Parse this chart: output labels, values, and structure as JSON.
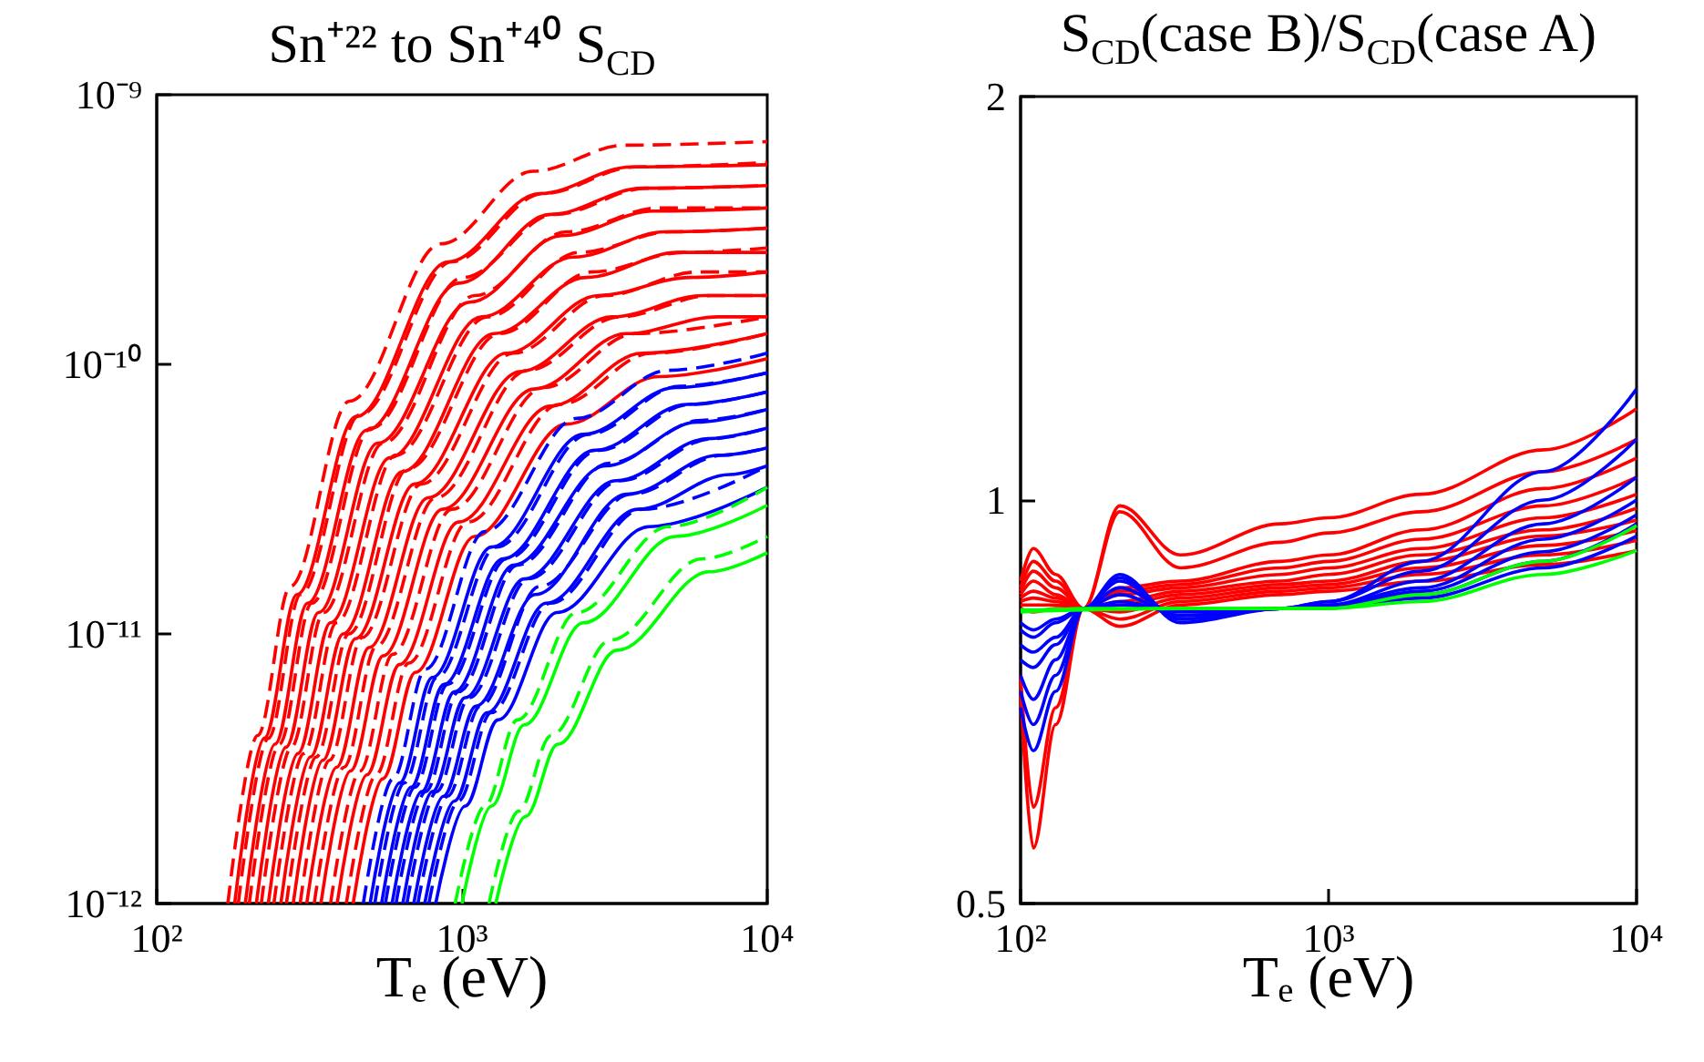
{
  "chart_data": [
    {
      "type": "line",
      "title": "Sn⁺²² to Sn⁺⁴⁰ S$_{CD}$",
      "xlabel": "Tₑ (eV)",
      "log": "xy",
      "marker": "none",
      "xlim": [
        100,
        10000
      ],
      "ylim": [
        1e-12,
        1e-09
      ],
      "xticks": [
        {
          "value": 100,
          "label": "10²"
        },
        {
          "value": 1000,
          "label": "10³"
        },
        {
          "value": 10000,
          "label": "10⁴"
        }
      ],
      "yticks": [
        {
          "value": 1e-12,
          "label": "10⁻¹²"
        },
        {
          "value": 1e-11,
          "label": "10⁻¹¹"
        },
        {
          "value": 1e-10,
          "label": "10⁻¹⁰"
        },
        {
          "value": 1e-09,
          "label": "10⁻⁹"
        }
      ],
      "series": [
        {
          "color": "#ff0000",
          "line_style": "solid",
          "x": [
            180,
            225,
            288,
            450,
            900,
            1800,
            3600,
            10000
          ],
          "values": [
            1e-12,
            4.1e-12,
            1.4e-11,
            6.4e-11,
            2.4e-10,
            4.3e-10,
            5.4e-10,
            5.5e-10
          ]
        },
        {
          "color": "#ff0000",
          "line_style": "dashed",
          "x": [
            171,
            214,
            274,
            428,
            855,
            1710,
            3420,
            10000
          ],
          "values": [
            1e-12,
            4.2e-12,
            1.5e-11,
            7.3e-11,
            2.8e-10,
            5.2e-10,
            6.5e-10,
            6.7e-10
          ]
        },
        {
          "color": "#ff0000",
          "line_style": "solid",
          "x": [
            195,
            244,
            312,
            488,
            975,
            1950,
            3900,
            10000
          ],
          "values": [
            1e-12,
            3.9e-12,
            1.3e-11,
            5.7e-11,
            2e-10,
            3.6e-10,
            4.5e-10,
            4.6e-10
          ]
        },
        {
          "color": "#ff0000",
          "line_style": "dashed",
          "x": [
            185,
            232,
            296,
            463,
            926,
            1850,
            3700,
            10000
          ],
          "values": [
            1e-12,
            4.1e-12,
            1.4e-11,
            6.5e-11,
            2.4e-10,
            4.3e-10,
            5.4e-10,
            5.6e-10
          ]
        },
        {
          "color": "#ff0000",
          "line_style": "solid",
          "x": [
            212,
            265,
            339,
            530,
            1060,
            2120,
            4240,
            10000
          ],
          "values": [
            1e-12,
            3.8e-12,
            1.2e-11,
            5.1e-11,
            1.7e-10,
            3e-10,
            3.7e-10,
            3.8e-10
          ]
        },
        {
          "color": "#ff0000",
          "line_style": "dashed",
          "x": [
            201,
            252,
            322,
            504,
            1007,
            2014,
            4028,
            10000
          ],
          "values": [
            1e-12,
            3.9e-12,
            1.3e-11,
            5.8e-11,
            2.1e-10,
            3.6e-10,
            4.5e-10,
            4.6e-10
          ]
        },
        {
          "color": "#ff0000",
          "line_style": "solid",
          "x": [
            232,
            290,
            371,
            580,
            1160,
            2320,
            4640,
            10000
          ],
          "values": [
            1e-12,
            3.6e-12,
            1.1e-11,
            4.5e-11,
            1.5e-10,
            2.5e-10,
            3.1e-10,
            3.2e-10
          ]
        },
        {
          "color": "#ff0000",
          "line_style": "dashed",
          "x": [
            220,
            276,
            352,
            551,
            1102,
            2204,
            4408,
            10000
          ],
          "values": [
            1e-12,
            3.8e-12,
            1.2e-11,
            5.1e-11,
            1.8e-10,
            3.1e-10,
            3.8e-10,
            3.8e-10
          ]
        },
        {
          "color": "#ff0000",
          "line_style": "solid",
          "x": [
            255,
            319,
            408,
            638,
            1275,
            2550,
            5100,
            10000
          ],
          "values": [
            1e-12,
            3.5e-12,
            1e-11,
            4e-11,
            1.3e-10,
            2.1e-10,
            2.6e-10,
            2.6e-10
          ]
        },
        {
          "color": "#ff0000",
          "line_style": "dashed",
          "x": [
            242,
            303,
            388,
            606,
            1211,
            2422,
            4845,
            10000
          ],
          "values": [
            1e-12,
            3.6e-12,
            1.1e-11,
            4.6e-11,
            1.5e-10,
            2.6e-10,
            3.1e-10,
            3.2e-10
          ]
        },
        {
          "color": "#ff0000",
          "line_style": "solid",
          "x": [
            280,
            350,
            448,
            700,
            1400,
            2800,
            5600,
            10000
          ],
          "values": [
            1e-12,
            3.4e-12,
            9.6e-12,
            3.6e-11,
            1.1e-10,
            1.8e-10,
            2.1e-10,
            2.2e-10
          ]
        },
        {
          "color": "#ff0000",
          "line_style": "dashed",
          "x": [
            266,
            333,
            426,
            665,
            1330,
            2660,
            5320,
            10000
          ],
          "values": [
            1e-12,
            3.5e-12,
            1e-11,
            4.1e-11,
            1.3e-10,
            2.2e-10,
            2.6e-10,
            2.7e-10
          ]
        },
        {
          "color": "#ff0000",
          "line_style": "solid",
          "x": [
            310,
            388,
            496,
            775,
            1550,
            3100,
            6200,
            10000
          ],
          "values": [
            1e-12,
            3.2e-12,
            8.9e-12,
            3.2e-11,
            9.4e-11,
            1.5e-10,
            1.8e-10,
            1.8e-10
          ]
        },
        {
          "color": "#ff0000",
          "line_style": "dashed",
          "x": [
            295,
            368,
            471,
            736,
            1473,
            2945,
            5890,
            10000
          ],
          "values": [
            1e-12,
            3.4e-12,
            9.7e-12,
            3.6e-11,
            1.1e-10,
            1.8e-10,
            2.2e-10,
            2.2e-10
          ]
        },
        {
          "color": "#ff0000",
          "line_style": "solid",
          "x": [
            345,
            431,
            552,
            863,
            1725,
            3450,
            6900,
            10000
          ],
          "values": [
            1e-12,
            3.1e-12,
            8.3e-12,
            2.9e-11,
            8.1e-11,
            1.3e-10,
            1.5e-10,
            1.5e-10
          ]
        },
        {
          "color": "#ff0000",
          "line_style": "dashed",
          "x": [
            328,
            410,
            524,
            820,
            1639,
            3278,
            6555,
            10000
          ],
          "values": [
            1e-12,
            3.2e-12,
            9e-12,
            3.2e-11,
            9.5e-11,
            1.5e-10,
            1.8e-10,
            1.8e-10
          ]
        },
        {
          "color": "#ff0000",
          "line_style": "solid",
          "x": [
            390,
            488,
            624,
            975,
            1950,
            3900,
            10000
          ],
          "values": [
            1e-12,
            3e-12,
            7.7e-12,
            2.6e-11,
            7e-11,
            1.1e-10,
            1.3e-10
          ]
        },
        {
          "color": "#ff0000",
          "line_style": "dashed",
          "x": [
            371,
            463,
            593,
            926,
            1853,
            3705,
            10000
          ],
          "values": [
            1e-12,
            3.1e-12,
            8.4e-12,
            2.9e-11,
            8.2e-11,
            1.3e-10,
            1.5e-10
          ]
        },
        {
          "color": "#ff0000",
          "line_style": "solid",
          "x": [
            440,
            550,
            704,
            1100,
            2200,
            4400,
            10000
          ],
          "values": [
            1e-12,
            2.9e-12,
            7.2e-12,
            2.3e-11,
            6e-11,
            9e-11,
            1.05e-10
          ]
        },
        {
          "color": "#ff0000",
          "line_style": "dashed",
          "x": [
            418,
            523,
            669,
            1045,
            2090,
            4180,
            10000
          ],
          "values": [
            1e-12,
            3e-12,
            7.8e-12,
            2.6e-11,
            7.1e-11,
            1.1e-10,
            1.3e-10
          ]
        },
        {
          "color": "#0000ff",
          "line_style": "solid",
          "x": [
            500,
            625,
            800,
            1250,
            2500,
            5000,
            10000
          ],
          "values": [
            1e-12,
            2.8e-12,
            6.9e-12,
            2.1e-11,
            5.5e-11,
            8.2e-11,
            9.3e-11
          ]
        },
        {
          "color": "#0000ff",
          "line_style": "dashed",
          "x": [
            475,
            594,
            760,
            1188,
            2375,
            4750,
            10000
          ],
          "values": [
            1e-12,
            2.9e-12,
            7.4e-12,
            2.4e-11,
            6.3e-11,
            9.5e-11,
            1.1e-10
          ]
        },
        {
          "color": "#0000ff",
          "line_style": "solid",
          "x": [
            545,
            681,
            872,
            1363,
            2725,
            5450,
            10000
          ],
          "values": [
            1e-12,
            2.7e-12,
            6.5e-12,
            1.9e-11,
            4.8e-11,
            7.1e-11,
            7.9e-11
          ]
        },
        {
          "color": "#0000ff",
          "line_style": "dashed",
          "x": [
            518,
            647,
            828,
            1295,
            2589,
            5178,
            10000
          ],
          "values": [
            1e-12,
            2.8e-12,
            6.9e-12,
            2.1e-11,
            5.5e-11,
            8.3e-11,
            9.3e-11
          ]
        },
        {
          "color": "#0000ff",
          "line_style": "solid",
          "x": [
            590,
            738,
            944,
            1475,
            2950,
            5900,
            10000
          ],
          "values": [
            1e-12,
            2.6e-12,
            6.1e-12,
            1.8e-11,
            4.2e-11,
            6.1e-11,
            6.8e-11
          ]
        },
        {
          "color": "#0000ff",
          "line_style": "dashed",
          "x": [
            561,
            701,
            897,
            1401,
            2803,
            5605,
            10000
          ],
          "values": [
            1e-12,
            2.7e-12,
            6.5e-12,
            1.9e-11,
            4.8e-11,
            7.1e-11,
            7.9e-11
          ]
        },
        {
          "color": "#0000ff",
          "line_style": "solid",
          "x": [
            640,
            800,
            1024,
            1600,
            3200,
            6400,
            10000
          ],
          "values": [
            1e-12,
            2.6e-12,
            5.8e-12,
            1.6e-11,
            3.7e-11,
            5.3e-11,
            5.8e-11
          ]
        },
        {
          "color": "#0000ff",
          "line_style": "dashed",
          "x": [
            608,
            760,
            973,
            1520,
            3040,
            6080,
            10000
          ],
          "values": [
            1e-12,
            2.6e-12,
            6.1e-12,
            1.8e-11,
            4.3e-11,
            6.2e-11,
            6.8e-11
          ]
        },
        {
          "color": "#0000ff",
          "line_style": "solid",
          "x": [
            695,
            869,
            1112,
            1738,
            3475,
            6950,
            10000
          ],
          "values": [
            1e-12,
            2.5e-12,
            5.4e-12,
            1.4e-11,
            3.3e-11,
            4.6e-11,
            4.9e-11
          ]
        },
        {
          "color": "#0000ff",
          "line_style": "dashed",
          "x": [
            660,
            826,
            1056,
            1651,
            3301,
            6603,
            10000
          ],
          "values": [
            1e-12,
            2.6e-12,
            5.8e-12,
            1.6e-11,
            3.7e-11,
            5.3e-11,
            5.8e-11
          ]
        },
        {
          "color": "#0000ff",
          "line_style": "solid",
          "x": [
            755,
            944,
            1208,
            1888,
            3775,
            7550,
            10000
          ],
          "values": [
            1e-12,
            2.4e-12,
            5.1e-12,
            1.3e-11,
            2.9e-11,
            3.9e-11,
            4.2e-11
          ]
        },
        {
          "color": "#0000ff",
          "line_style": "dashed",
          "x": [
            717,
            897,
            1148,
            1794,
            3586,
            7173,
            10000
          ],
          "values": [
            1e-12,
            2.5e-12,
            5.4e-12,
            1.5e-11,
            3.3e-11,
            4.6e-11,
            4.9e-11
          ]
        },
        {
          "color": "#0000ff",
          "line_style": "solid",
          "x": [
            820,
            1025,
            1312,
            2050,
            4100,
            10000
          ],
          "values": [
            1e-12,
            2.3e-12,
            4.8e-12,
            1.2e-11,
            2.5e-11,
            3.5e-11
          ]
        },
        {
          "color": "#0000ff",
          "line_style": "dashed",
          "x": [
            779,
            974,
            1246,
            1948,
            3895,
            10000
          ],
          "values": [
            1e-12,
            2.4e-12,
            5.1e-12,
            1.3e-11,
            2.9e-11,
            4.2e-11
          ]
        },
        {
          "color": "#00ff00",
          "line_style": "solid",
          "x": [
            1000,
            1250,
            1600,
            2500,
            5000,
            10000
          ],
          "values": [
            1e-12,
            2.3e-12,
            4.6e-12,
            1.1e-11,
            2.3e-11,
            3e-11
          ]
        },
        {
          "color": "#00ff00",
          "line_style": "dashed",
          "x": [
            950,
            1188,
            1520,
            2375,
            4750,
            10000
          ],
          "values": [
            1e-12,
            2.3e-12,
            4.8e-12,
            1.2e-11,
            2.5e-11,
            3.5e-11
          ]
        },
        {
          "color": "#00ff00",
          "line_style": "solid",
          "x": [
            1290,
            1613,
            2064,
            3225,
            6450,
            10000
          ],
          "values": [
            1e-12,
            2.1e-12,
            3.9e-12,
            8.7e-12,
            1.7e-11,
            2e-11
          ]
        },
        {
          "color": "#00ff00",
          "line_style": "dashed",
          "x": [
            1226,
            1532,
            1961,
            3064,
            6128,
            10000
          ],
          "values": [
            1e-12,
            2.2e-12,
            4.2e-12,
            9.5e-12,
            1.9e-11,
            2.3e-11
          ]
        }
      ]
    },
    {
      "type": "line",
      "title": "S$_{CD}$(case B)/S$_{CD}$(case A)",
      "xlabel": "Tₑ (eV)",
      "log": "xy",
      "marker": "none",
      "xlim": [
        100,
        10000
      ],
      "ylim": [
        0.5,
        2
      ],
      "xticks": [
        {
          "value": 100,
          "label": "10²"
        },
        {
          "value": 1000,
          "label": "10³"
        },
        {
          "value": 10000,
          "label": "10⁴"
        }
      ],
      "yticks": [
        0.5,
        1,
        2
      ],
      "x": [
        100,
        110,
        130,
        160,
        210,
        330,
        700,
        1000,
        2000,
        5000,
        10000
      ],
      "series": [
        {
          "color": "#ff0000",
          "line_style": "solid",
          "values": [
            0.72,
            0.55,
            0.68,
            0.83,
            0.99,
            0.91,
            0.96,
            0.97,
            1.01,
            1.09,
            1.17
          ]
        },
        {
          "color": "#ff0000",
          "line_style": "solid",
          "values": [
            0.74,
            0.59,
            0.7,
            0.83,
            0.98,
            0.89,
            0.93,
            0.945,
            0.98,
            1.05,
            1.11
          ]
        },
        {
          "color": "#ff0000",
          "line_style": "solid",
          "values": [
            0.87,
            0.92,
            0.88,
            0.83,
            0.86,
            0.87,
            0.9,
            0.91,
            0.95,
            1.02,
            1.075
          ]
        },
        {
          "color": "#ff0000",
          "line_style": "solid",
          "values": [
            0.86,
            0.9,
            0.87,
            0.83,
            0.855,
            0.865,
            0.89,
            0.9,
            0.935,
            0.99,
            1.04
          ]
        },
        {
          "color": "#ff0000",
          "line_style": "solid",
          "values": [
            0.855,
            0.885,
            0.86,
            0.83,
            0.85,
            0.86,
            0.88,
            0.89,
            0.92,
            0.97,
            1.01
          ]
        },
        {
          "color": "#ff0000",
          "line_style": "solid",
          "values": [
            0.85,
            0.87,
            0.85,
            0.83,
            0.84,
            0.855,
            0.87,
            0.88,
            0.91,
            0.95,
            0.986
          ]
        },
        {
          "color": "#ff0000",
          "line_style": "solid",
          "values": [
            0.845,
            0.855,
            0.845,
            0.83,
            0.835,
            0.85,
            0.865,
            0.87,
            0.9,
            0.94,
            0.966
          ]
        },
        {
          "color": "#ff0000",
          "line_style": "solid",
          "values": [
            0.84,
            0.845,
            0.84,
            0.83,
            0.825,
            0.845,
            0.86,
            0.865,
            0.89,
            0.925,
            0.949
          ]
        },
        {
          "color": "#ff0000",
          "line_style": "solid",
          "values": [
            0.835,
            0.835,
            0.835,
            0.83,
            0.815,
            0.84,
            0.855,
            0.86,
            0.88,
            0.91,
            0.933
          ]
        },
        {
          "color": "#ff0000",
          "line_style": "solid",
          "values": [
            0.83,
            0.825,
            0.83,
            0.83,
            0.805,
            0.835,
            0.85,
            0.855,
            0.87,
            0.895,
            0.917
          ]
        },
        {
          "color": "#0000ff",
          "line_style": "solid",
          "values": [
            0.7,
            0.65,
            0.72,
            0.83,
            0.88,
            0.81,
            0.83,
            0.84,
            0.9,
            1.05,
            1.21
          ]
        },
        {
          "color": "#0000ff",
          "line_style": "solid",
          "values": [
            0.72,
            0.68,
            0.74,
            0.83,
            0.875,
            0.815,
            0.83,
            0.84,
            0.885,
            1.0,
            1.11
          ]
        },
        {
          "color": "#0000ff",
          "line_style": "solid",
          "values": [
            0.74,
            0.71,
            0.76,
            0.83,
            0.87,
            0.815,
            0.83,
            0.835,
            0.87,
            0.96,
            1.04
          ]
        },
        {
          "color": "#0000ff",
          "line_style": "solid",
          "values": [
            0.76,
            0.75,
            0.78,
            0.83,
            0.86,
            0.82,
            0.83,
            0.835,
            0.86,
            0.935,
            1.0
          ]
        },
        {
          "color": "#0000ff",
          "line_style": "solid",
          "values": [
            0.78,
            0.77,
            0.79,
            0.83,
            0.85,
            0.82,
            0.83,
            0.833,
            0.855,
            0.915,
            0.975
          ]
        },
        {
          "color": "#0000ff",
          "line_style": "solid",
          "values": [
            0.8,
            0.79,
            0.81,
            0.83,
            0.84,
            0.825,
            0.83,
            0.832,
            0.85,
            0.9,
            0.96
          ]
        },
        {
          "color": "#0000ff",
          "line_style": "solid",
          "values": [
            0.81,
            0.8,
            0.815,
            0.83,
            0.835,
            0.826,
            0.83,
            0.831,
            0.845,
            0.89,
            0.94
          ]
        },
        {
          "color": "#00ff00",
          "line_style": "solid",
          "values": [
            0.828,
            0.828,
            0.829,
            0.83,
            0.83,
            0.83,
            0.83,
            0.83,
            0.85,
            0.9,
            0.957
          ]
        },
        {
          "color": "#00ff00",
          "line_style": "solid",
          "values": [
            0.825,
            0.826,
            0.827,
            0.828,
            0.829,
            0.83,
            0.83,
            0.83,
            0.84,
            0.88,
            0.917
          ]
        }
      ]
    }
  ]
}
